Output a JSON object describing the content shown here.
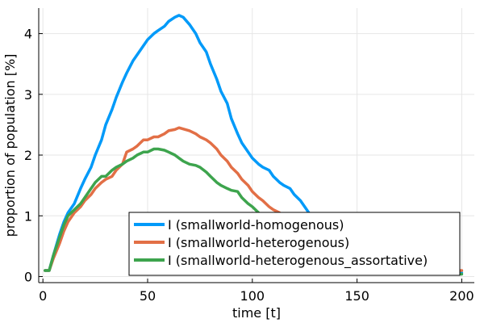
{
  "chart_data": {
    "type": "line",
    "title": "",
    "xlabel": "time [t]",
    "ylabel": "proportion of population [%]",
    "xlim": [
      -2,
      206
    ],
    "ylim": [
      -0.1,
      4.42
    ],
    "xticks": [
      0,
      50,
      100,
      150,
      200
    ],
    "yticks": [
      0,
      1,
      2,
      3,
      4
    ],
    "grid": true,
    "legend_position": "bottom-right",
    "series": [
      {
        "name": "I (smallworld-homogenous)",
        "color": "#009af9",
        "points": [
          [
            1,
            0.1
          ],
          [
            3,
            0.1
          ],
          [
            5,
            0.35
          ],
          [
            8,
            0.7
          ],
          [
            10,
            0.9
          ],
          [
            12,
            1.05
          ],
          [
            15,
            1.2
          ],
          [
            18,
            1.45
          ],
          [
            20,
            1.6
          ],
          [
            23,
            1.8
          ],
          [
            25,
            2.0
          ],
          [
            28,
            2.25
          ],
          [
            30,
            2.5
          ],
          [
            33,
            2.75
          ],
          [
            35,
            2.95
          ],
          [
            38,
            3.2
          ],
          [
            40,
            3.35
          ],
          [
            43,
            3.55
          ],
          [
            45,
            3.65
          ],
          [
            48,
            3.8
          ],
          [
            50,
            3.9
          ],
          [
            53,
            4.0
          ],
          [
            55,
            4.05
          ],
          [
            58,
            4.12
          ],
          [
            60,
            4.2
          ],
          [
            63,
            4.27
          ],
          [
            65,
            4.3
          ],
          [
            67,
            4.27
          ],
          [
            70,
            4.15
          ],
          [
            73,
            4.0
          ],
          [
            75,
            3.85
          ],
          [
            78,
            3.7
          ],
          [
            80,
            3.5
          ],
          [
            83,
            3.25
          ],
          [
            85,
            3.05
          ],
          [
            88,
            2.85
          ],
          [
            90,
            2.6
          ],
          [
            93,
            2.35
          ],
          [
            95,
            2.2
          ],
          [
            98,
            2.05
          ],
          [
            100,
            1.95
          ],
          [
            103,
            1.85
          ],
          [
            105,
            1.8
          ],
          [
            108,
            1.75
          ],
          [
            110,
            1.65
          ],
          [
            113,
            1.55
          ],
          [
            115,
            1.5
          ],
          [
            118,
            1.45
          ],
          [
            120,
            1.35
          ],
          [
            123,
            1.25
          ],
          [
            125,
            1.15
          ],
          [
            128,
            1.0
          ],
          [
            130,
            0.9
          ],
          [
            135,
            0.7
          ],
          [
            140,
            0.55
          ],
          [
            145,
            0.45
          ],
          [
            150,
            0.35
          ],
          [
            155,
            0.3
          ],
          [
            160,
            0.25
          ],
          [
            165,
            0.2
          ],
          [
            170,
            0.15
          ],
          [
            175,
            0.12
          ],
          [
            180,
            0.1
          ],
          [
            185,
            0.08
          ],
          [
            190,
            0.07
          ],
          [
            195,
            0.06
          ],
          [
            200,
            0.06
          ]
        ]
      },
      {
        "name": "I (smallworld-heterogenous)",
        "color": "#e26f46",
        "points": [
          [
            1,
            0.1
          ],
          [
            3,
            0.1
          ],
          [
            5,
            0.3
          ],
          [
            8,
            0.55
          ],
          [
            10,
            0.75
          ],
          [
            12,
            0.9
          ],
          [
            15,
            1.05
          ],
          [
            18,
            1.15
          ],
          [
            20,
            1.25
          ],
          [
            23,
            1.35
          ],
          [
            25,
            1.45
          ],
          [
            28,
            1.55
          ],
          [
            30,
            1.6
          ],
          [
            33,
            1.65
          ],
          [
            35,
            1.75
          ],
          [
            38,
            1.85
          ],
          [
            40,
            2.05
          ],
          [
            43,
            2.1
          ],
          [
            45,
            2.15
          ],
          [
            48,
            2.25
          ],
          [
            50,
            2.25
          ],
          [
            53,
            2.3
          ],
          [
            55,
            2.3
          ],
          [
            58,
            2.35
          ],
          [
            60,
            2.4
          ],
          [
            63,
            2.42
          ],
          [
            65,
            2.45
          ],
          [
            67,
            2.43
          ],
          [
            70,
            2.4
          ],
          [
            73,
            2.35
          ],
          [
            75,
            2.3
          ],
          [
            78,
            2.25
          ],
          [
            80,
            2.2
          ],
          [
            83,
            2.1
          ],
          [
            85,
            2.0
          ],
          [
            88,
            1.9
          ],
          [
            90,
            1.8
          ],
          [
            93,
            1.7
          ],
          [
            95,
            1.6
          ],
          [
            98,
            1.5
          ],
          [
            100,
            1.4
          ],
          [
            103,
            1.3
          ],
          [
            105,
            1.25
          ],
          [
            108,
            1.15
          ],
          [
            110,
            1.1
          ],
          [
            113,
            1.05
          ],
          [
            115,
            1.0
          ],
          [
            118,
            0.95
          ],
          [
            120,
            0.9
          ],
          [
            123,
            0.8
          ],
          [
            125,
            0.7
          ],
          [
            130,
            0.5
          ],
          [
            135,
            0.35
          ],
          [
            140,
            0.25
          ],
          [
            145,
            0.2
          ],
          [
            150,
            0.15
          ],
          [
            155,
            0.12
          ],
          [
            160,
            0.1
          ],
          [
            170,
            0.08
          ],
          [
            180,
            0.07
          ],
          [
            190,
            0.08
          ],
          [
            200,
            0.1
          ]
        ]
      },
      {
        "name": "I (smallworld-heterogenous_assortative)",
        "color": "#3da44d",
        "points": [
          [
            1,
            0.1
          ],
          [
            3,
            0.1
          ],
          [
            5,
            0.35
          ],
          [
            8,
            0.65
          ],
          [
            10,
            0.85
          ],
          [
            12,
            1.0
          ],
          [
            15,
            1.1
          ],
          [
            18,
            1.2
          ],
          [
            20,
            1.3
          ],
          [
            23,
            1.45
          ],
          [
            25,
            1.55
          ],
          [
            28,
            1.65
          ],
          [
            30,
            1.65
          ],
          [
            33,
            1.75
          ],
          [
            35,
            1.8
          ],
          [
            38,
            1.85
          ],
          [
            40,
            1.9
          ],
          [
            43,
            1.95
          ],
          [
            45,
            2.0
          ],
          [
            48,
            2.05
          ],
          [
            50,
            2.05
          ],
          [
            53,
            2.1
          ],
          [
            55,
            2.1
          ],
          [
            58,
            2.08
          ],
          [
            60,
            2.05
          ],
          [
            63,
            2.0
          ],
          [
            65,
            1.95
          ],
          [
            67,
            1.9
          ],
          [
            70,
            1.85
          ],
          [
            73,
            1.83
          ],
          [
            75,
            1.8
          ],
          [
            78,
            1.72
          ],
          [
            80,
            1.65
          ],
          [
            83,
            1.55
          ],
          [
            85,
            1.5
          ],
          [
            88,
            1.45
          ],
          [
            90,
            1.42
          ],
          [
            93,
            1.4
          ],
          [
            95,
            1.3
          ],
          [
            98,
            1.2
          ],
          [
            100,
            1.15
          ],
          [
            103,
            1.05
          ],
          [
            105,
            1.0
          ],
          [
            108,
            0.92
          ],
          [
            110,
            0.85
          ],
          [
            113,
            0.75
          ],
          [
            115,
            0.7
          ],
          [
            118,
            0.6
          ],
          [
            120,
            0.55
          ],
          [
            125,
            0.45
          ],
          [
            130,
            0.35
          ],
          [
            135,
            0.3
          ],
          [
            140,
            0.25
          ],
          [
            145,
            0.2
          ],
          [
            150,
            0.15
          ],
          [
            155,
            0.12
          ],
          [
            160,
            0.1
          ],
          [
            170,
            0.08
          ],
          [
            180,
            0.06
          ],
          [
            190,
            0.04
          ],
          [
            200,
            0.04
          ]
        ]
      }
    ]
  }
}
